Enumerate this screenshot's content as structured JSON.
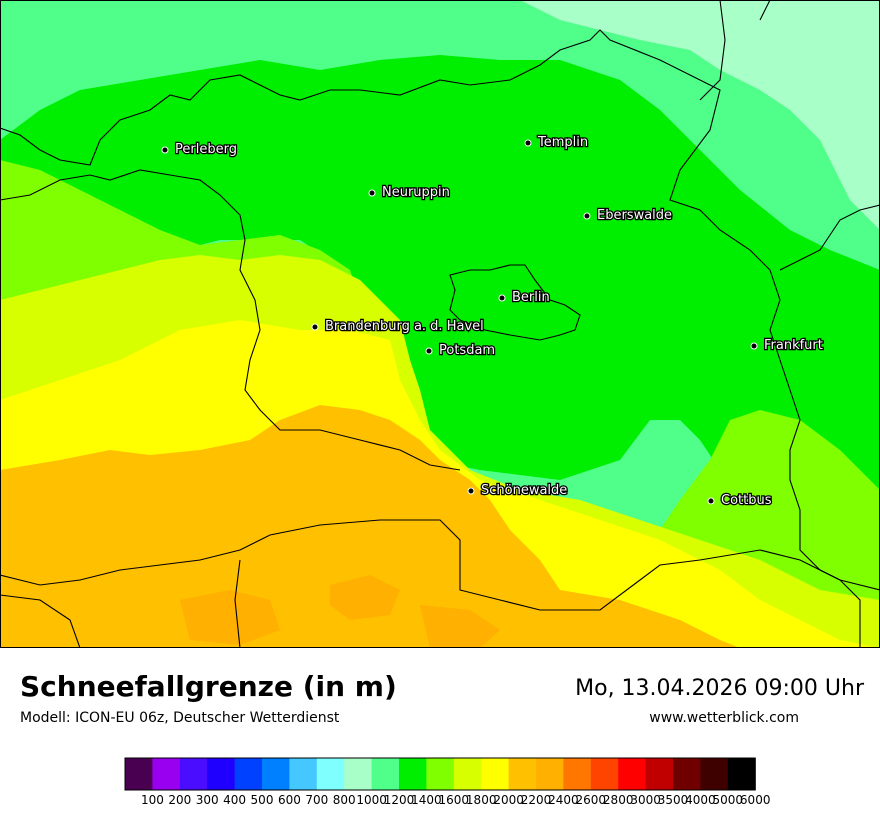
{
  "title": "Schneefallgrenze (in m)",
  "subtitle": "Modell: ICON-EU 06z, Deutscher Wetterdienst",
  "datetime": "Mo, 13.04.2026 09:00 Uhr",
  "website": "www.wetterblick.com",
  "cities": [
    {
      "name": "Perleberg"
    },
    {
      "name": "Templin"
    },
    {
      "name": "Neuruppin"
    },
    {
      "name": "Eberswalde"
    },
    {
      "name": "Berlin"
    },
    {
      "name": "Brandenburg a. d. Havel"
    },
    {
      "name": "Potsdam"
    },
    {
      "name": "Frankfurt"
    },
    {
      "name": "Schönewalde"
    },
    {
      "name": "Cottbus"
    }
  ],
  "legend": {
    "labels": [
      "100",
      "200",
      "300",
      "400",
      "500",
      "600",
      "700",
      "800",
      "1000",
      "1200",
      "1400",
      "1600",
      "1800",
      "2000",
      "2200",
      "2400",
      "2600",
      "2800",
      "3000",
      "3500",
      "4000",
      "5000",
      "6000"
    ],
    "colors": [
      "#4a0050",
      "#9a00f0",
      "#4b0dff",
      "#1f00ff",
      "#0040ff",
      "#0080ff",
      "#45c8ff",
      "#80ffff",
      "#a8ffc8",
      "#4fff8a",
      "#00ee00",
      "#80ff00",
      "#d8ff00",
      "#ffff00",
      "#ffc000",
      "#ffb000",
      "#ff7700",
      "#ff4400",
      "#ff0000",
      "#c00000",
      "#700000",
      "#3f0000",
      "#000000"
    ]
  }
}
